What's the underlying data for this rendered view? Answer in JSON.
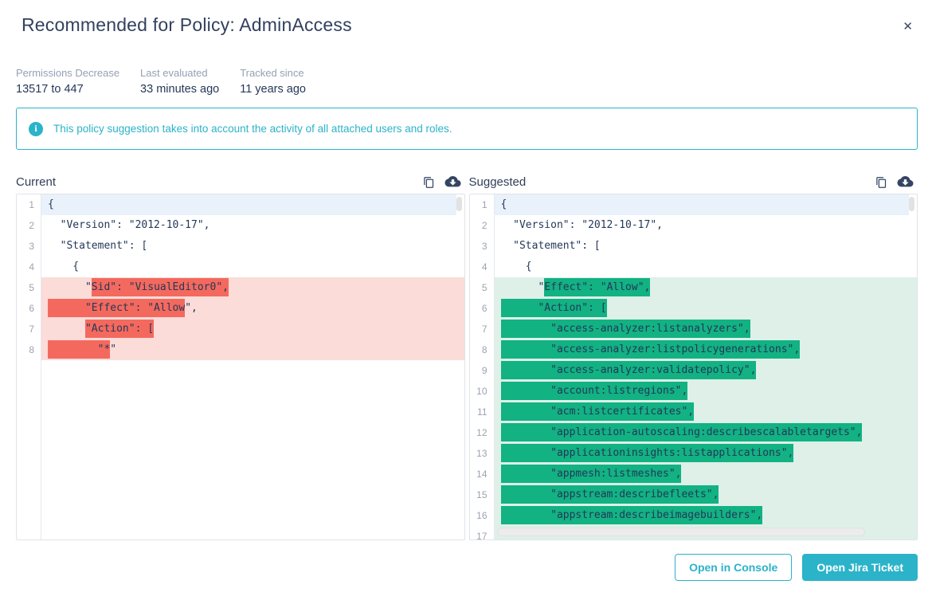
{
  "modal": {
    "title": "Recommended for Policy: AdminAccess",
    "close_label": "✕"
  },
  "meta": {
    "items": [
      {
        "label": "Permissions Decrease",
        "value": "13517 to 447"
      },
      {
        "label": "Last evaluated",
        "value": "33 minutes ago"
      },
      {
        "label": "Tracked since",
        "value": "11 years ago"
      }
    ]
  },
  "banner": {
    "icon": "info-icon",
    "icon_glyph": "i",
    "text": "This policy suggestion takes into account the activity of all attached users and roles.",
    "accent_color": "#2bb3c9"
  },
  "diff": {
    "panels": [
      {
        "id": "current",
        "label": "Current",
        "icons": [
          "copy-icon",
          "cloud-download-icon"
        ],
        "highlight_style": "removed",
        "colors": {
          "line_bg": "#fbdcd8",
          "inline_bg": "#f4695e",
          "focus_line_bg": "#e9f1fb"
        },
        "has_horizontal_scrollbar": false,
        "lines": [
          {
            "n": 1,
            "bg": "focus",
            "segs": [
              {
                "t": "{",
                "h": false
              }
            ]
          },
          {
            "n": 2,
            "bg": "",
            "segs": [
              {
                "t": "  \"Version\": \"2012-10-17\",",
                "h": false
              }
            ]
          },
          {
            "n": 3,
            "bg": "",
            "segs": [
              {
                "t": "  \"Statement\": [",
                "h": false
              }
            ]
          },
          {
            "n": 4,
            "bg": "",
            "segs": [
              {
                "t": "    {",
                "h": false
              }
            ]
          },
          {
            "n": 5,
            "bg": "diff",
            "segs": [
              {
                "t": "      \"",
                "h": false
              },
              {
                "t": "Sid\": \"VisualEditor0\",",
                "h": true
              }
            ]
          },
          {
            "n": 6,
            "bg": "diff",
            "segs": [
              {
                "t": "      \"Effect\": \"Allow",
                "h": true
              },
              {
                "t": "\",",
                "h": false
              }
            ]
          },
          {
            "n": 7,
            "bg": "diff",
            "segs": [
              {
                "t": "      ",
                "h": false
              },
              {
                "t": "\"Action\": [",
                "h": true
              }
            ]
          },
          {
            "n": 8,
            "bg": "diff",
            "segs": [
              {
                "t": "        \"*",
                "h": true
              },
              {
                "t": "\"",
                "h": false
              }
            ]
          }
        ]
      },
      {
        "id": "suggested",
        "label": "Suggested",
        "icons": [
          "copy-icon",
          "cloud-download-icon"
        ],
        "highlight_style": "added",
        "colors": {
          "line_bg": "#def0e8",
          "inline_bg": "#12b283",
          "focus_line_bg": "#e9f1fb"
        },
        "has_horizontal_scrollbar": true,
        "lines": [
          {
            "n": 1,
            "bg": "focus",
            "segs": [
              {
                "t": "{",
                "h": false
              }
            ]
          },
          {
            "n": 2,
            "bg": "",
            "segs": [
              {
                "t": "  \"Version\": \"2012-10-17\",",
                "h": false
              }
            ]
          },
          {
            "n": 3,
            "bg": "",
            "segs": [
              {
                "t": "  \"Statement\": [",
                "h": false
              }
            ]
          },
          {
            "n": 4,
            "bg": "",
            "segs": [
              {
                "t": "    {",
                "h": false
              }
            ]
          },
          {
            "n": 5,
            "bg": "diff",
            "segs": [
              {
                "t": "      \"",
                "h": false
              },
              {
                "t": "Effect\": \"Allow\",",
                "h": true
              }
            ]
          },
          {
            "n": 6,
            "bg": "diff",
            "segs": [
              {
                "t": "      \"Action\": [",
                "h": true
              }
            ]
          },
          {
            "n": 7,
            "bg": "diff",
            "segs": [
              {
                "t": "        \"access-analyzer:listanalyzers\",",
                "h": true
              }
            ]
          },
          {
            "n": 8,
            "bg": "diff",
            "segs": [
              {
                "t": "        \"access-analyzer:listpolicygenerations\",",
                "h": true
              }
            ]
          },
          {
            "n": 9,
            "bg": "diff",
            "segs": [
              {
                "t": "        \"access-analyzer:validatepolicy\",",
                "h": true
              }
            ]
          },
          {
            "n": 10,
            "bg": "diff",
            "segs": [
              {
                "t": "        \"account:listregions\",",
                "h": true
              }
            ]
          },
          {
            "n": 11,
            "bg": "diff",
            "segs": [
              {
                "t": "        \"acm:listcertificates\",",
                "h": true
              }
            ]
          },
          {
            "n": 12,
            "bg": "diff",
            "segs": [
              {
                "t": "        \"application-autoscaling:describescalabletargets\",",
                "h": true
              }
            ]
          },
          {
            "n": 13,
            "bg": "diff",
            "segs": [
              {
                "t": "        \"applicationinsights:listapplications\",",
                "h": true
              }
            ]
          },
          {
            "n": 14,
            "bg": "diff",
            "segs": [
              {
                "t": "        \"appmesh:listmeshes\",",
                "h": true
              }
            ]
          },
          {
            "n": 15,
            "bg": "diff",
            "segs": [
              {
                "t": "        \"appstream:describefleets\",",
                "h": true
              }
            ]
          },
          {
            "n": 16,
            "bg": "diff",
            "segs": [
              {
                "t": "        \"appstream:describeimagebuilders\",",
                "h": true
              }
            ]
          },
          {
            "n": 17,
            "bg": "diff",
            "segs": []
          }
        ]
      }
    ]
  },
  "footer": {
    "buttons": [
      {
        "label": "Open in Console",
        "variant": "outline"
      },
      {
        "label": "Open Jira Ticket",
        "variant": "solid"
      }
    ]
  }
}
